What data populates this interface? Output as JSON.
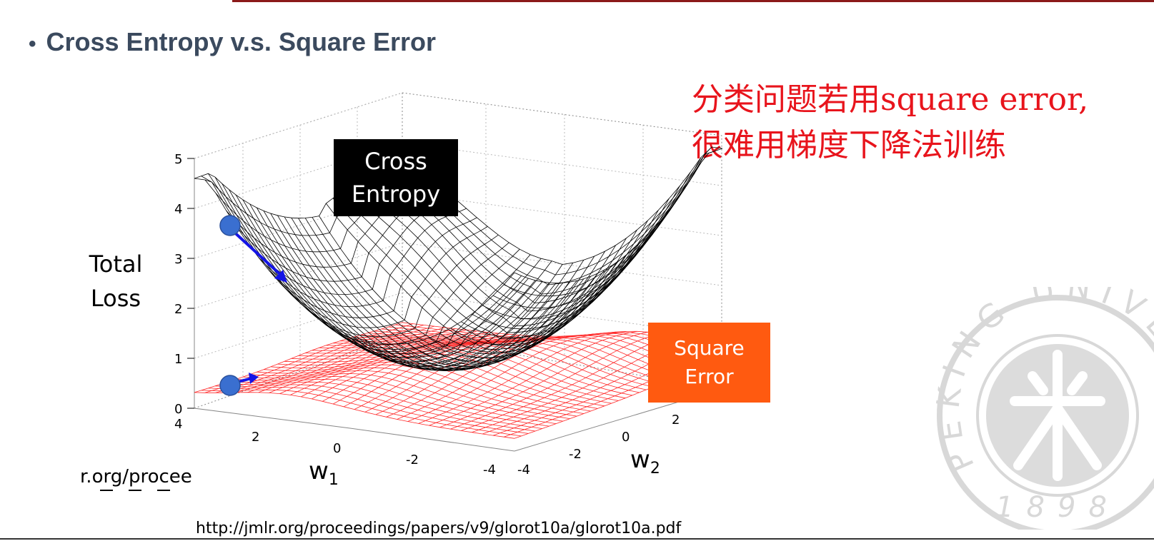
{
  "slide": {
    "title": "Cross Entropy v.s. Square Error",
    "annotation_line1": "分类问题若用square error,",
    "annotation_line2": "很难用梯度下降法训练",
    "url": "http://jmlr.org/proceedings/papers/v9/glorot10a/glorot10a.pdf",
    "url_fragment": "r.org/procee"
  },
  "plot": {
    "z_axis_title_line1": "Total",
    "z_axis_title_line2": "Loss",
    "w1_label": "w",
    "w1_sub": "1",
    "w2_label": "w",
    "w2_sub": "2",
    "z_ticks": [
      "5",
      "4",
      "3",
      "2",
      "1",
      "0"
    ],
    "w1_ticks": [
      "4",
      "2",
      "0",
      "-2",
      "-4"
    ],
    "w2_ticks": [
      "-4",
      "-2",
      "0",
      "2"
    ],
    "cross_entropy_label_line1": "Cross",
    "cross_entropy_label_line2": "Entropy",
    "square_error_label_line1": "Square",
    "square_error_label_line2": "Error",
    "colors": {
      "cross_entropy_mesh": "#000000",
      "square_error_mesh": "#ff0000",
      "arrow": "#1414e6",
      "ball": "#3a6fd0"
    }
  },
  "seal": {
    "text": "PEKING UNIVERSITY",
    "year": "1898",
    "color": "#d8d8d8"
  }
}
